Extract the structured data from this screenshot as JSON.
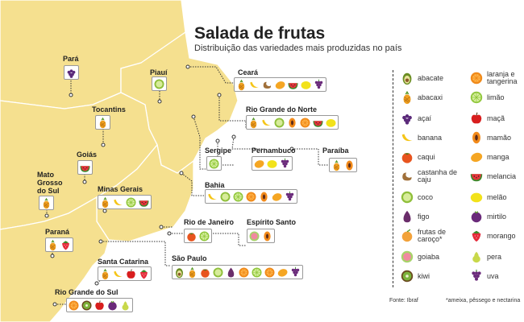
{
  "title": "Salada de frutas",
  "subtitle": "Distribuição das variedades mais produzidas no país",
  "source": "Fonte: Ibraf",
  "note": "*ameixa, pêssego e nectarina",
  "colors": {
    "land": "#f5e08f",
    "border": "#ffffff",
    "text": "#222222"
  },
  "states": [
    {
      "name": "Pará",
      "fruits": [
        "acai"
      ]
    },
    {
      "name": "Piauí",
      "fruits": [
        "coco"
      ]
    },
    {
      "name": "Tocantins",
      "fruits": [
        "abacaxi"
      ]
    },
    {
      "name": "Goiás",
      "fruits": [
        "melancia"
      ]
    },
    {
      "name": "Mato Grosso do Sul",
      "fruits": [
        "abacaxi"
      ]
    },
    {
      "name": "Minas Gerais",
      "fruits": [
        "abacaxi",
        "banana",
        "limao",
        "melancia"
      ]
    },
    {
      "name": "Paraná",
      "fruits": [
        "abacaxi",
        "morango"
      ]
    },
    {
      "name": "Santa Catarina",
      "fruits": [
        "abacaxi",
        "banana",
        "maca",
        "morango"
      ]
    },
    {
      "name": "Rio Grande do Sul",
      "fruits": [
        "laranja",
        "kiwi",
        "maca",
        "mirtilo",
        "pera"
      ]
    },
    {
      "name": "Ceará",
      "fruits": [
        "abacaxi",
        "banana",
        "castanha",
        "manga",
        "melancia",
        "melao",
        "uva"
      ]
    },
    {
      "name": "Rio Grande do Norte",
      "fruits": [
        "abacaxi",
        "banana",
        "coco",
        "mamao",
        "laranja",
        "melancia",
        "melao"
      ]
    },
    {
      "name": "Paraíba",
      "fruits": [
        "abacaxi",
        "mamao"
      ]
    },
    {
      "name": "Pernambuco",
      "fruits": [
        "manga",
        "melao",
        "uva"
      ]
    },
    {
      "name": "Sergipe",
      "fruits": [
        "limao"
      ]
    },
    {
      "name": "Bahia",
      "fruits": [
        "banana",
        "coco",
        "limao",
        "laranja",
        "mamao",
        "manga",
        "uva"
      ]
    },
    {
      "name": "Rio de Janeiro",
      "fruits": [
        "caqui",
        "limao"
      ]
    },
    {
      "name": "Espírito Santo",
      "fruits": [
        "goiaba",
        "mamao"
      ]
    },
    {
      "name": "São Paulo",
      "fruits": [
        "abacate",
        "abacaxi",
        "caqui",
        "coco",
        "figo",
        "laranja",
        "limao",
        "laranja",
        "manga",
        "uva"
      ]
    }
  ],
  "legend": [
    {
      "id": "abacate",
      "label": "abacate"
    },
    {
      "id": "abacaxi",
      "label": "abacaxi"
    },
    {
      "id": "acai",
      "label": "açaí"
    },
    {
      "id": "banana",
      "label": "banana"
    },
    {
      "id": "caqui",
      "label": "caqui"
    },
    {
      "id": "castanha",
      "label": "castanha de caju"
    },
    {
      "id": "coco",
      "label": "coco"
    },
    {
      "id": "figo",
      "label": "figo"
    },
    {
      "id": "caroco",
      "label": "frutas de caroço*"
    },
    {
      "id": "goiaba",
      "label": "goiaba"
    },
    {
      "id": "kiwi",
      "label": "kiwi"
    },
    {
      "id": "laranja",
      "label": "laranja e tangerina"
    },
    {
      "id": "limao",
      "label": "limão"
    },
    {
      "id": "maca",
      "label": "maçã"
    },
    {
      "id": "mamao",
      "label": "mamão"
    },
    {
      "id": "manga",
      "label": "manga"
    },
    {
      "id": "melancia",
      "label": "melancia"
    },
    {
      "id": "melao",
      "label": "melão"
    },
    {
      "id": "mirtilo",
      "label": "mirtilo"
    },
    {
      "id": "morango",
      "label": "morango"
    },
    {
      "id": "pera",
      "label": "pera"
    },
    {
      "id": "uva",
      "label": "uva"
    }
  ]
}
